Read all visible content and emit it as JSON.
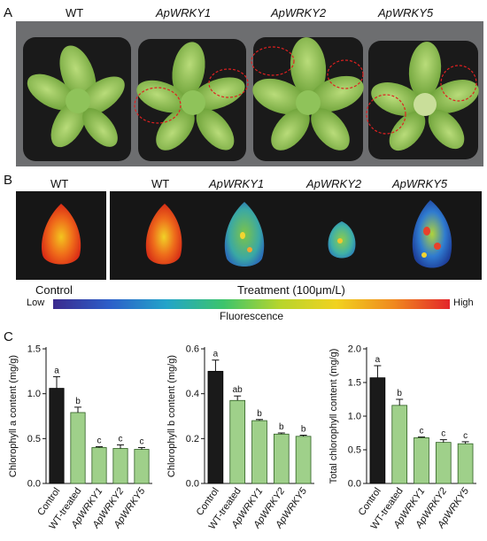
{
  "panelA": {
    "letter": "A",
    "genotypes": [
      "WT",
      "ApWRKY1",
      "ApWRKY2",
      "ApWRKY5"
    ]
  },
  "panelB": {
    "letter": "B",
    "control_genotype": "WT",
    "treatment_genotypes": [
      "WT",
      "ApWRKY1",
      "ApWRKY2",
      "ApWRKY5"
    ],
    "control_label": "Control",
    "treatment_label": "Treatment (100μm/L)",
    "scale_low": "Low",
    "scale_high": "High",
    "scale_title": "Fluorescence"
  },
  "panelC": {
    "letter": "C"
  },
  "colors": {
    "control_bar": "#1a1a1a",
    "treated_bar": "#9fd08a",
    "bar_edge": "#2e5e22"
  },
  "chart_data": [
    {
      "type": "bar",
      "categories": [
        "Control",
        "WT-treated",
        "ApWRKY1",
        "ApWRKY2",
        "ApWRKY5"
      ],
      "values": [
        1.06,
        0.79,
        0.4,
        0.39,
        0.38
      ],
      "errors": [
        0.13,
        0.06,
        0.01,
        0.04,
        0.02
      ],
      "letters": [
        "a",
        "b",
        "c",
        "c",
        "c"
      ],
      "ylabel": "Chlorophyll a content (mg/g)",
      "ylim": [
        0,
        1.5
      ],
      "yticks": [
        "0.0",
        "0.5",
        "1.0",
        "1.5"
      ]
    },
    {
      "type": "bar",
      "categories": [
        "Control",
        "WT-treated",
        "ApWRKY1",
        "ApWRKY2",
        "ApWRKY5"
      ],
      "values": [
        0.5,
        0.37,
        0.28,
        0.22,
        0.21
      ],
      "errors": [
        0.05,
        0.02,
        0.005,
        0.005,
        0.005
      ],
      "letters": [
        "a",
        "ab",
        "b",
        "b",
        "b"
      ],
      "ylabel": "Chlorophyll b content (mg/g)",
      "ylim": [
        0,
        0.6
      ],
      "yticks": [
        "0.0",
        "0.2",
        "0.4",
        "0.6"
      ]
    },
    {
      "type": "bar",
      "categories": [
        "Control",
        "WT-treated",
        "ApWRKY1",
        "ApWRKY2",
        "ApWRKY5"
      ],
      "values": [
        1.57,
        1.16,
        0.68,
        0.61,
        0.59
      ],
      "errors": [
        0.18,
        0.09,
        0.01,
        0.04,
        0.03
      ],
      "letters": [
        "a",
        "b",
        "c",
        "c",
        "c"
      ],
      "ylabel": "Total chlorophyll content (mg/g)",
      "ylim": [
        0,
        2.0
      ],
      "yticks": [
        "0.0",
        "0.5",
        "1.0",
        "1.5",
        "2.0"
      ]
    }
  ]
}
